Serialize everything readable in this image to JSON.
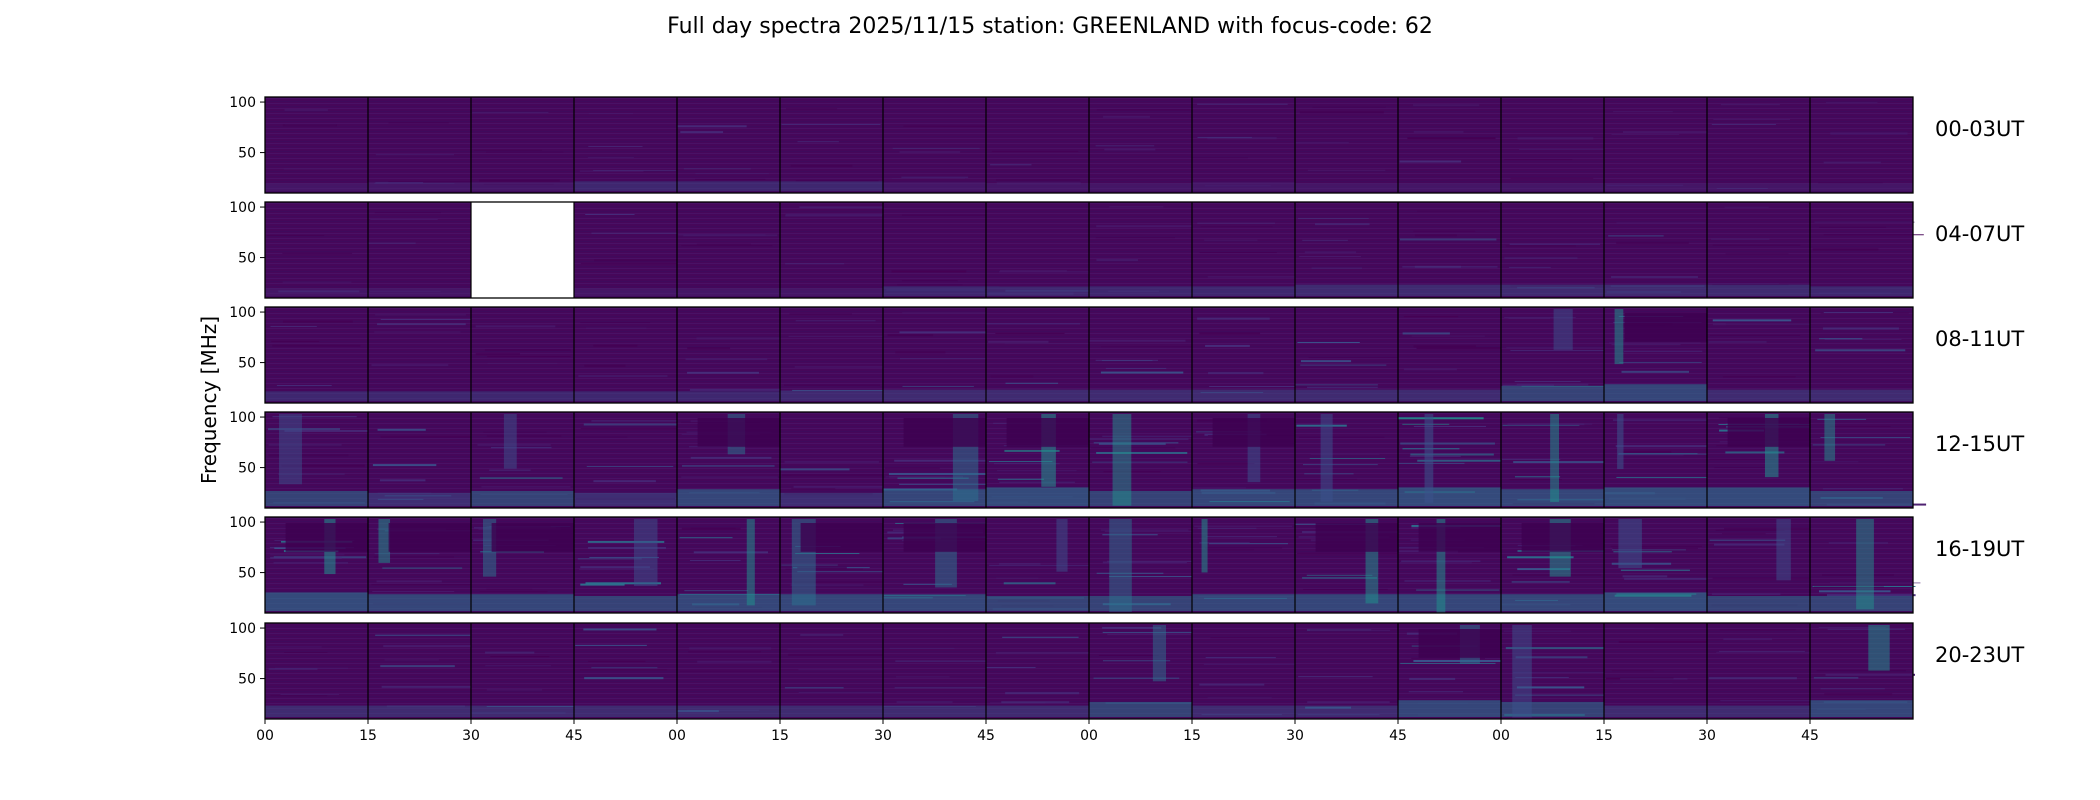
{
  "chart_data": {
    "type": "heatmap",
    "title": "Full day spectra 2025/11/15 station: GREENLAND with focus-code: 62",
    "ylabel": "Frequency [MHz]",
    "xlabel": "",
    "ylim": [
      10,
      105
    ],
    "y_ticks": [
      "100",
      "50"
    ],
    "y_tick_values": [
      100,
      50
    ],
    "x_tick_labels": [
      "00",
      "15",
      "30",
      "45",
      "00",
      "15",
      "30",
      "45",
      "00",
      "15",
      "30",
      "45",
      "00",
      "15",
      "30",
      "45"
    ],
    "panels_per_row": 16,
    "minutes_per_panel": 15,
    "colormap": {
      "low": "#440154",
      "mid": "#3b528b",
      "high": "#21918c",
      "peak": "#35b779"
    },
    "rows": [
      {
        "label": "00-03UT",
        "missing_panels": [],
        "activity": [
          0.1,
          0.15,
          0.15,
          0.2,
          0.2,
          0.2,
          0.15,
          0.1,
          0.1,
          0.15,
          0.1,
          0.1,
          0.1,
          0.1,
          0.1,
          0.1
        ]
      },
      {
        "label": "04-07UT",
        "missing_panels": [
          2
        ],
        "activity": [
          0.1,
          0.1,
          0,
          0.1,
          0.1,
          0.1,
          0.2,
          0.2,
          0.2,
          0.2,
          0.3,
          0.3,
          0.3,
          0.3,
          0.3,
          0.2
        ]
      },
      {
        "label": "08-11UT",
        "missing_panels": [],
        "activity": [
          0.2,
          0.2,
          0.2,
          0.2,
          0.2,
          0.25,
          0.3,
          0.3,
          0.3,
          0.3,
          0.3,
          0.3,
          0.5,
          0.6,
          0.3,
          0.3
        ]
      },
      {
        "label": "12-15UT",
        "missing_panels": [],
        "activity": [
          0.5,
          0.4,
          0.5,
          0.4,
          0.6,
          0.4,
          0.6,
          0.7,
          0.5,
          0.6,
          0.6,
          0.7,
          0.6,
          0.7,
          0.7,
          0.5
        ]
      },
      {
        "label": "16-19UT",
        "missing_panels": [],
        "activity": [
          0.7,
          0.6,
          0.6,
          0.5,
          0.6,
          0.6,
          0.6,
          0.5,
          0.5,
          0.6,
          0.6,
          0.6,
          0.6,
          0.7,
          0.5,
          0.5
        ]
      },
      {
        "label": "20-23UT",
        "missing_panels": [],
        "activity": [
          0.3,
          0.3,
          0.3,
          0.3,
          0.3,
          0.3,
          0.3,
          0.3,
          0.5,
          0.3,
          0.3,
          0.6,
          0.5,
          0.3,
          0.3,
          0.6
        ]
      }
    ]
  }
}
